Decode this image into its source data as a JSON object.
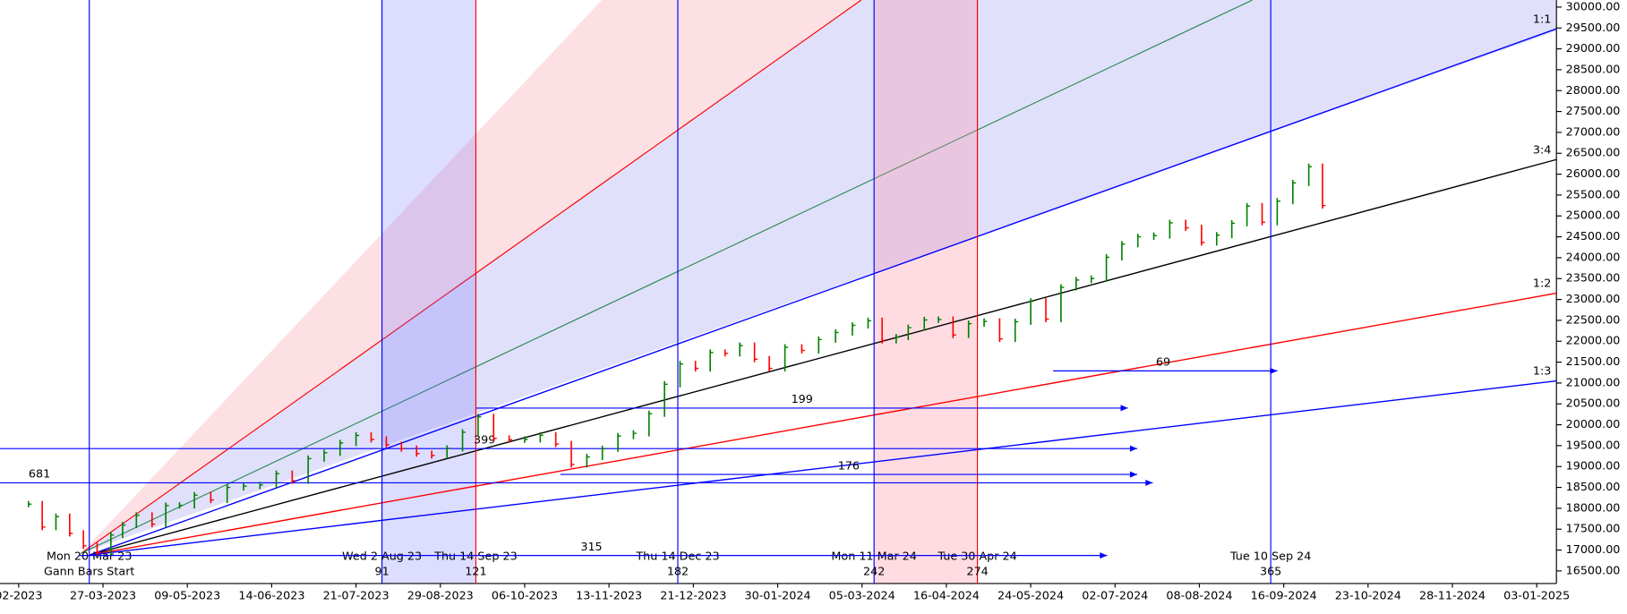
{
  "chart_data": {
    "type": "ohlc",
    "up_color": "#008000",
    "down_color": "#ff0000",
    "x": [
      "17-02-2023",
      "24-02-2023",
      "03-03-2023",
      "10-03-2023",
      "17-03-2023",
      "24-03-2023",
      "31-03-2023",
      "06-04-2023",
      "13-04-2023",
      "21-04-2023",
      "28-04-2023",
      "05-05-2023",
      "12-05-2023",
      "19-05-2023",
      "26-05-2023",
      "02-06-2023",
      "09-06-2023",
      "16-06-2023",
      "23-06-2023",
      "30-06-2023",
      "07-07-2023",
      "14-07-2023",
      "21-07-2023",
      "28-07-2023",
      "04-08-2023",
      "11-08-2023",
      "18-08-2023",
      "25-08-2023",
      "01-09-2023",
      "08-09-2023",
      "15-09-2023",
      "22-09-2023",
      "29-09-2023",
      "06-10-2023",
      "13-10-2023",
      "20-10-2023",
      "27-10-2023",
      "03-11-2023",
      "10-11-2023",
      "17-11-2023",
      "24-11-2023",
      "01-12-2023",
      "08-12-2023",
      "15-12-2023",
      "22-12-2023",
      "29-12-2023",
      "05-01-2024",
      "12-01-2024",
      "19-01-2024",
      "26-01-2024",
      "02-02-2024",
      "09-02-2024",
      "16-02-2024",
      "23-02-2024",
      "01-03-2024",
      "08-03-2024",
      "15-03-2024",
      "22-03-2024",
      "28-03-2024",
      "05-04-2024",
      "12-04-2024",
      "19-04-2024",
      "26-04-2024",
      "03-05-2024",
      "10-05-2024",
      "17-05-2024",
      "24-05-2024",
      "31-05-2024",
      "07-06-2024",
      "14-06-2024",
      "21-06-2024",
      "28-06-2024",
      "05-07-2024",
      "12-07-2024",
      "19-07-2024",
      "26-07-2024",
      "02-08-2024",
      "09-08-2024",
      "16-08-2024",
      "23-08-2024",
      "30-08-2024",
      "06-09-2024",
      "13-09-2024",
      "20-09-2024",
      "27-09-2024",
      "03-10-2024"
    ],
    "values": [
      18100,
      17550,
      17800,
      17400,
      17100,
      16950,
      17360,
      17600,
      17830,
      17620,
      18065,
      18070,
      18315,
      18200,
      18500,
      18530,
      18560,
      18830,
      18660,
      19190,
      19330,
      19565,
      19745,
      19650,
      19520,
      19430,
      19310,
      19265,
      19435,
      19820,
      20190,
      19675,
      19640,
      19650,
      19750,
      19540,
      19050,
      19230,
      19425,
      19730,
      19795,
      20265,
      20970,
      21455,
      21350,
      21730,
      21710,
      21895,
      21570,
      21350,
      21855,
      21780,
      22040,
      22210,
      22380,
      22490,
      22020,
      22100,
      22325,
      22510,
      22520,
      22150,
      22420,
      22475,
      22055,
      22465,
      22955,
      22530,
      23290,
      23465,
      23500,
      24010,
      24325,
      24500,
      24530,
      24835,
      24715,
      24365,
      24540,
      24825,
      25235,
      24850,
      25355,
      25790,
      26180,
      25250
    ],
    "xticks": [
      "02-2023",
      "27-03-2023",
      "09-05-2023",
      "14-06-2023",
      "21-07-2023",
      "29-08-2023",
      "06-10-2023",
      "13-11-2023",
      "21-12-2023",
      "30-01-2024",
      "05-03-2024",
      "16-04-2024",
      "24-05-2024",
      "02-07-2024",
      "08-08-2024",
      "16-09-2024",
      "23-10-2024",
      "28-11-2024",
      "03-01-2025"
    ],
    "ylim": [
      16200,
      30170
    ],
    "yticks": [
      {
        "value": 16500,
        "label": "16500.00"
      },
      {
        "value": 17000,
        "label": "17000.00"
      },
      {
        "value": 17500,
        "label": "17500.00"
      },
      {
        "value": 18000,
        "label": "18000.00"
      },
      {
        "value": 18500,
        "label": "18500.00"
      },
      {
        "value": 19000,
        "label": "19000.00"
      },
      {
        "value": 19500,
        "label": "19500.00"
      },
      {
        "value": 20000,
        "label": "20000.00"
      },
      {
        "value": 20500,
        "label": "20500.00"
      },
      {
        "value": 21000,
        "label": "21000.00"
      },
      {
        "value": 21500,
        "label": "21500.00"
      },
      {
        "value": 22000,
        "label": "22000.00"
      },
      {
        "value": 22500,
        "label": "22500.00"
      },
      {
        "value": 23000,
        "label": "23000.00"
      },
      {
        "value": 23500,
        "label": "23500.00"
      },
      {
        "value": 24000,
        "label": "24000.00"
      },
      {
        "value": 24500,
        "label": "24500.00"
      },
      {
        "value": 25000,
        "label": "25000.00"
      },
      {
        "value": 25500,
        "label": "25500.00"
      },
      {
        "value": 26000,
        "label": "26000.00"
      },
      {
        "value": 26500,
        "label": "26500.00"
      },
      {
        "value": 27000,
        "label": "27000.00"
      },
      {
        "value": 27500,
        "label": "27500.00"
      },
      {
        "value": 28000,
        "label": "28000.00"
      },
      {
        "value": 28500,
        "label": "28500.00"
      },
      {
        "value": 29000,
        "label": "29000.00"
      },
      {
        "value": 29500,
        "label": "29500.00"
      },
      {
        "value": 30000,
        "label": "30000.00"
      }
    ],
    "fan_origin": {
      "label": "Mon 20 Mar 23",
      "sublabel": "Gann Bars Start",
      "value": 16880
    },
    "fan_lines": [
      {
        "label": "1:1",
        "color": "#0000ff",
        "end_value": 29480
      },
      {
        "label": "3:4",
        "color": "#000000",
        "end_value": 26350
      },
      {
        "label": "1:2",
        "color": "#ff0000",
        "end_value": 23150
      },
      {
        "label": "1:3",
        "color": "#0000ff",
        "end_value": 21050
      }
    ],
    "time_cycles": [
      {
        "label": "Wed 2 Aug 23",
        "days": 91,
        "color": "#0000ff"
      },
      {
        "label": "Thu 14 Sep 23",
        "days": 121,
        "color": "#ff0000"
      },
      {
        "label": "Thu 14 Dec 23",
        "days": 182,
        "color": "#0000ff"
      },
      {
        "label": "Mon 11 Mar 24",
        "days": 242,
        "color": "#0000ff"
      },
      {
        "label": "Tue 30 Apr 24",
        "days": 274,
        "color": "#ff0000"
      },
      {
        "label": "Tue 10 Sep 24",
        "days": 365,
        "color": "#0000ff"
      }
    ],
    "levels": [
      {
        "count": 399,
        "value": 19430
      },
      {
        "count": 681,
        "value": 18610
      },
      {
        "count": 199,
        "value": 20400
      },
      {
        "count": 176,
        "value": 18810
      },
      {
        "count": 69,
        "value": 21290
      },
      {
        "count": 315,
        "value": 16870
      }
    ]
  }
}
